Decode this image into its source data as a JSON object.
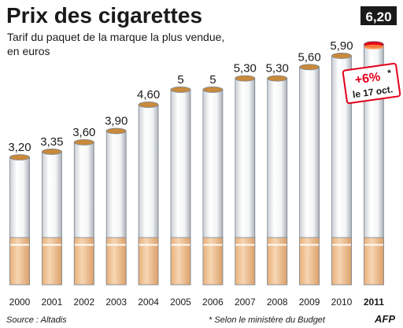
{
  "title": "Prix des cigarettes",
  "subtitle_line1": "Tarif du paquet de la marque la plus vendue,",
  "subtitle_line2": "en euros",
  "source": "Source : Altadis",
  "footnote": "* Selon le ministère du Budget",
  "logo": "AFP",
  "highlight_value": "6,20",
  "callout_line1": "+6%",
  "callout_star": "*",
  "callout_line2": "le 17 oct.",
  "colors": {
    "title": "#1a1a1a",
    "highlight_box": "#1a1a1a",
    "callout": "#e2001a",
    "filter": "#f2c79a",
    "tobacco": "#c98a3c"
  },
  "chart_data": {
    "type": "bar",
    "title": "Prix des cigarettes",
    "xlabel": "",
    "ylabel": "",
    "categories": [
      "2000",
      "2001",
      "2002",
      "2003",
      "2004",
      "2005",
      "2006",
      "2007",
      "2008",
      "2009",
      "2010",
      "2011"
    ],
    "values": [
      3.2,
      3.35,
      3.6,
      3.9,
      4.6,
      5,
      5,
      5.3,
      5.3,
      5.6,
      5.9,
      6.2
    ],
    "value_labels": [
      "3,20",
      "3,35",
      "3,60",
      "3,90",
      "4,60",
      "5",
      "5",
      "5,30",
      "5,30",
      "5,60",
      "5,90",
      "6,20"
    ],
    "ylim": [
      0,
      6.2
    ],
    "grid": false,
    "legend": "none"
  }
}
